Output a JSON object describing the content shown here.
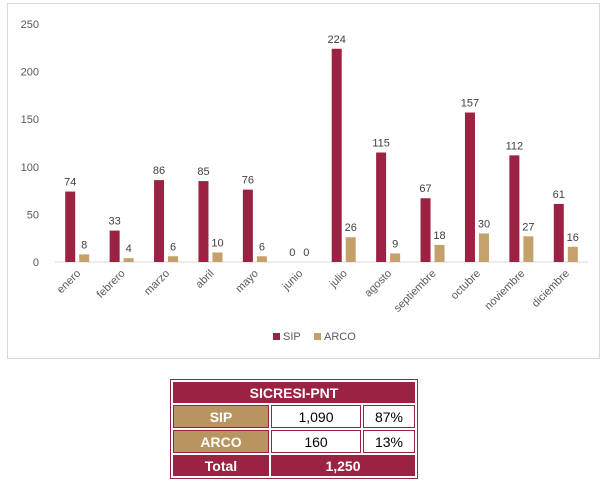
{
  "chart_data": {
    "type": "bar",
    "categories": [
      "enero",
      "febrero",
      "marzo",
      "abril",
      "mayo",
      "junio",
      "julio",
      "agosto",
      "septiembre",
      "octubre",
      "noviembre",
      "diciembre"
    ],
    "series": [
      {
        "name": "SIP",
        "color": "#9b2242",
        "values": [
          74,
          33,
          86,
          85,
          76,
          0,
          224,
          115,
          67,
          157,
          112,
          61
        ]
      },
      {
        "name": "ARCO",
        "color": "#c4a06a",
        "values": [
          8,
          4,
          6,
          10,
          6,
          0,
          26,
          9,
          18,
          30,
          27,
          16
        ]
      }
    ],
    "yticks": [
      0,
      50,
      100,
      150,
      200,
      250
    ],
    "ylim": [
      0,
      250
    ],
    "grid": false,
    "legend": "bottom-center",
    "title": "",
    "xlabel": "",
    "ylabel": ""
  },
  "table": {
    "title": "SICRESI-PNT",
    "rows": [
      {
        "label": "SIP",
        "value": "1,090",
        "pct": "87%"
      },
      {
        "label": "ARCO",
        "value": "160",
        "pct": "13%"
      }
    ],
    "total": {
      "label": "Total",
      "value": "1,250"
    }
  }
}
